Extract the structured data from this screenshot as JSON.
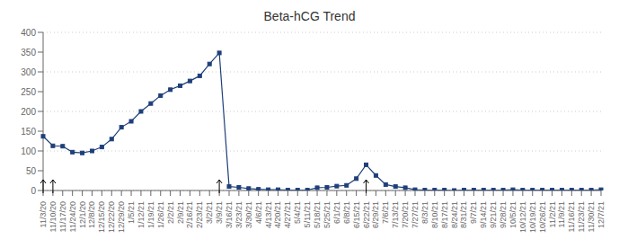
{
  "chart_data": {
    "type": "line",
    "title": "Beta-hCG Trend",
    "categories": [
      "11/3/20",
      "11/10/20",
      "11/17/20",
      "11/24/20",
      "12/1/20",
      "12/8/20",
      "12/15/20",
      "12/22/20",
      "12/29/20",
      "1/5/21",
      "1/12/21",
      "1/19/21",
      "1/26/21",
      "2/2/21",
      "2/9/21",
      "2/16/21",
      "2/23/21",
      "3/2/21",
      "3/9/21",
      "3/16/21",
      "3/23/21",
      "3/30/21",
      "4/6/21",
      "4/13/21",
      "4/20/21",
      "4/27/21",
      "5/4/21",
      "5/11/21",
      "5/18/21",
      "5/25/21",
      "6/1/21",
      "6/8/21",
      "6/15/21",
      "6/22/21",
      "6/29/21",
      "7/6/21",
      "7/13/21",
      "7/20/21",
      "7/27/21",
      "8/3/21",
      "8/10/21",
      "8/17/21",
      "8/24/21",
      "8/31/21",
      "9/7/21",
      "9/14/21",
      "9/21/21",
      "9/28/21",
      "10/5/21",
      "10/12/21",
      "10/19/21",
      "10/26/21",
      "11/2/21",
      "11/9/21",
      "11/16/21",
      "11/23/21",
      "11/30/21",
      "12/7/21"
    ],
    "values": [
      137,
      113,
      112,
      97,
      95,
      100,
      110,
      130,
      160,
      175,
      200,
      220,
      240,
      255,
      265,
      277,
      290,
      320,
      348,
      10,
      8,
      5,
      3,
      2,
      2,
      1,
      1,
      1,
      7,
      8,
      11,
      13,
      30,
      65,
      38,
      15,
      10,
      7,
      2,
      1,
      1,
      1,
      0,
      1,
      1,
      1,
      1,
      1,
      2,
      1,
      1,
      1,
      1,
      1,
      1,
      1,
      1,
      2
    ],
    "color": "#1f3f7a",
    "marker": "square",
    "arrows": [
      "11/3/20",
      "11/10/20",
      "3/9/21",
      "6/22/21"
    ],
    "ylim": [
      0,
      400
    ],
    "yticks": [
      0,
      50,
      100,
      150,
      200,
      250,
      300,
      350,
      400
    ],
    "grid": true
  }
}
